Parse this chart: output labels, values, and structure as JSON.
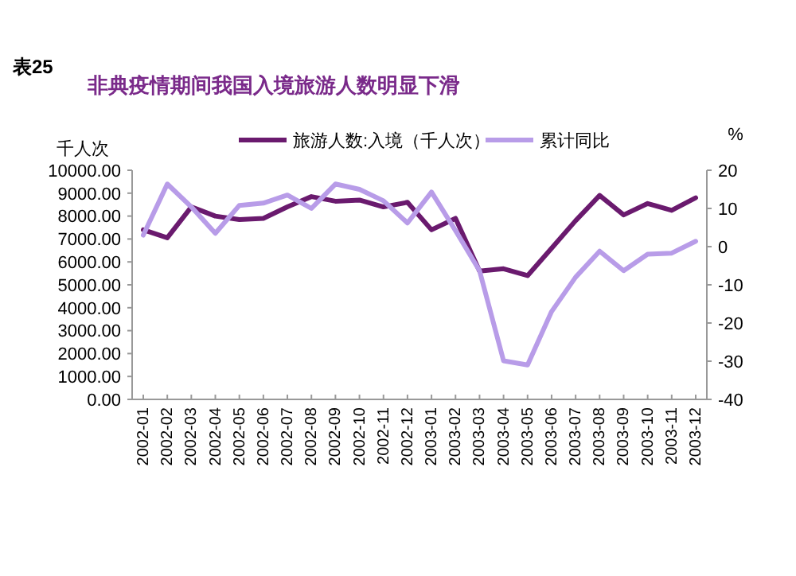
{
  "chart_data": {
    "type": "line",
    "title": "表25",
    "subtitle": "非典疫情期间我国入境旅游人数明显下滑",
    "ylabel": "千人次",
    "y2label": "%",
    "categories": [
      "2002-01",
      "2002-02",
      "2002-03",
      "2002-04",
      "2002-05",
      "2002-06",
      "2002-07",
      "2002-08",
      "2002-09",
      "2002-10",
      "2002-11",
      "2002-12",
      "2003-01",
      "2003-02",
      "2003-03",
      "2003-04",
      "2003-05",
      "2003-06",
      "2003-07",
      "2003-08",
      "2003-09",
      "2003-10",
      "2003-11",
      "2003-12"
    ],
    "series": [
      {
        "name": "旅游人数:入境（千人次）",
        "color": "#6a1a6e",
        "values": [
          7400,
          7050,
          8400,
          8000,
          7850,
          7900,
          8400,
          8850,
          8650,
          8700,
          8400,
          8600,
          7400,
          7900,
          5600,
          5700,
          5400,
          6600,
          7800,
          8900,
          8050,
          8550,
          8250,
          8800
        ]
      },
      {
        "name": "累计同比",
        "color": "#b89ce8",
        "axis": "y2",
        "values": [
          3,
          16.4,
          10.4,
          3.5,
          10.8,
          11.4,
          13.5,
          10,
          16.4,
          15,
          12,
          6.2,
          14.3,
          4.2,
          -6.3,
          -29.9,
          -31,
          -17,
          -8,
          -1.2,
          -6.3,
          -2,
          -1.7,
          1.4
        ]
      }
    ],
    "ylim": [
      0,
      10000
    ],
    "yticks": [
      {
        "value": 0,
        "label": "0.00"
      },
      {
        "value": 1000,
        "label": "1000.00"
      },
      {
        "value": 2000,
        "label": "2000.00"
      },
      {
        "value": 3000,
        "label": "3000.00"
      },
      {
        "value": 4000,
        "label": "4000.00"
      },
      {
        "value": 5000,
        "label": "5000.00"
      },
      {
        "value": 6000,
        "label": "6000.00"
      },
      {
        "value": 7000,
        "label": "7000.00"
      },
      {
        "value": 8000,
        "label": "8000.00"
      },
      {
        "value": 9000,
        "label": "9000.00"
      },
      {
        "value": 10000,
        "label": "10000.00"
      }
    ],
    "y2lim": [
      -40,
      20
    ],
    "y2ticks": [
      -40,
      -30,
      -20,
      -10,
      0,
      10,
      20
    ],
    "legend": "top",
    "grid": false,
    "marker": "none",
    "line_style": "solid"
  }
}
